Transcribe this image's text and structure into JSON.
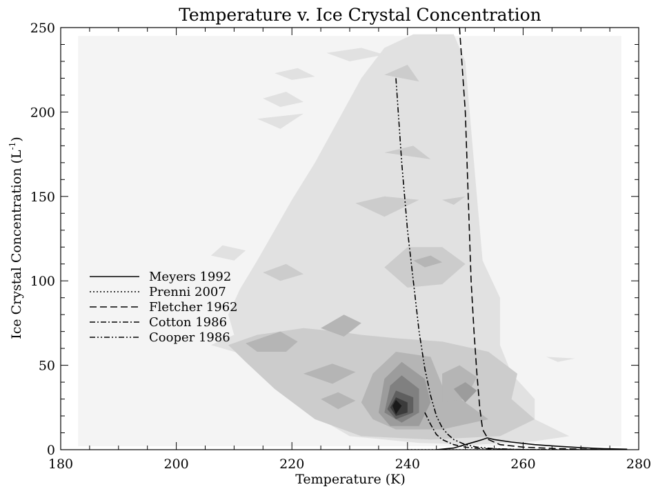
{
  "chart_data": {
    "type": "contour",
    "title": "Temperature v. Ice Crystal Concentration",
    "xlabel": "Temperature (K)",
    "ylabel": "Ice Crystal Concentration (L",
    "ylabel_sup": "-1",
    "ylabel_suffix": ")",
    "xlim": [
      180,
      280
    ],
    "ylim": [
      0,
      250
    ],
    "xticks": [
      180,
      200,
      220,
      240,
      260,
      280
    ],
    "yticks": [
      0,
      50,
      100,
      150,
      200,
      250
    ],
    "x_minor_step": 5,
    "y_minor_step": 10,
    "grid": false,
    "legend_position": "middle-left",
    "colors": {
      "background": "#ffffff",
      "axis": "#000000",
      "levels": [
        "#f4f4f4",
        "#e1e1e1",
        "#cccccc",
        "#b5b5b5",
        "#9c9c9c",
        "#808080",
        "#5f5f5f",
        "#3b3b3b",
        "#1a1a1a"
      ]
    },
    "density_background": {
      "x": [
        183,
        277
      ],
      "y": [
        2,
        245
      ]
    },
    "density_regions": [
      {
        "level": 1,
        "points": [
          [
            210,
            68
          ],
          [
            206,
            62
          ],
          [
            212,
            56
          ],
          [
            218,
            40
          ],
          [
            224,
            20
          ],
          [
            230,
            8
          ],
          [
            242,
            4
          ],
          [
            252,
            3
          ],
          [
            262,
            5
          ],
          [
            268,
            8
          ],
          [
            262,
            18
          ],
          [
            262,
            30
          ],
          [
            258,
            45
          ],
          [
            256,
            62
          ],
          [
            256,
            90
          ],
          [
            253,
            112
          ],
          [
            252,
            150
          ],
          [
            251,
            190
          ],
          [
            250,
            230
          ],
          [
            248,
            246
          ],
          [
            241,
            246
          ],
          [
            236,
            238
          ],
          [
            232,
            220
          ],
          [
            228,
            195
          ],
          [
            224,
            170
          ],
          [
            220,
            148
          ],
          [
            217,
            130
          ],
          [
            214,
            112
          ],
          [
            211,
            95
          ],
          [
            209,
            80
          ]
        ]
      },
      {
        "level": 1,
        "points": [
          [
            208,
            121
          ],
          [
            212,
            118
          ],
          [
            210,
            112
          ],
          [
            206,
            115
          ]
        ]
      },
      {
        "level": 1,
        "points": [
          [
            214,
            196
          ],
          [
            222,
            199
          ],
          [
            218,
            190
          ]
        ]
      },
      {
        "level": 1,
        "points": [
          [
            217,
            223
          ],
          [
            221,
            226
          ],
          [
            224,
            221
          ],
          [
            220,
            219
          ]
        ]
      },
      {
        "level": 1,
        "points": [
          [
            215,
            208
          ],
          [
            219,
            212
          ],
          [
            222,
            206
          ],
          [
            218,
            203
          ]
        ]
      },
      {
        "level": 1,
        "points": [
          [
            226,
            235
          ],
          [
            232,
            238
          ],
          [
            236,
            234
          ],
          [
            230,
            230
          ]
        ]
      },
      {
        "level": 1,
        "points": [
          [
            264,
            55
          ],
          [
            269,
            54
          ],
          [
            266,
            52
          ]
        ]
      },
      {
        "level": 2,
        "points": [
          [
            209,
            62
          ],
          [
            214,
            68
          ],
          [
            222,
            72
          ],
          [
            228,
            70
          ],
          [
            232,
            68
          ],
          [
            238,
            66
          ],
          [
            246,
            64
          ],
          [
            254,
            58
          ],
          [
            259,
            45
          ],
          [
            258,
            30
          ],
          [
            262,
            18
          ],
          [
            256,
            8
          ],
          [
            244,
            6
          ],
          [
            232,
            8
          ],
          [
            224,
            18
          ],
          [
            217,
            36
          ],
          [
            212,
            52
          ]
        ]
      },
      {
        "level": 2,
        "points": [
          [
            236,
            108
          ],
          [
            240,
            120
          ],
          [
            246,
            120
          ],
          [
            250,
            110
          ],
          [
            246,
            98
          ],
          [
            240,
            96
          ]
        ]
      },
      {
        "level": 2,
        "points": [
          [
            231,
            146
          ],
          [
            236,
            150
          ],
          [
            242,
            148
          ],
          [
            236,
            138
          ]
        ]
      },
      {
        "level": 2,
        "points": [
          [
            236,
            176
          ],
          [
            241,
            180
          ],
          [
            244,
            172
          ]
        ]
      },
      {
        "level": 2,
        "points": [
          [
            236,
            222
          ],
          [
            240,
            228
          ],
          [
            242,
            218
          ]
        ]
      },
      {
        "level": 2,
        "points": [
          [
            215,
            105
          ],
          [
            219,
            110
          ],
          [
            222,
            104
          ],
          [
            218,
            100
          ]
        ]
      },
      {
        "level": 2,
        "points": [
          [
            246,
            148
          ],
          [
            250,
            150
          ],
          [
            248,
            145
          ]
        ]
      },
      {
        "level": 3,
        "points": [
          [
            212,
            63
          ],
          [
            218,
            70
          ],
          [
            221,
            64
          ],
          [
            219,
            58
          ],
          [
            214,
            58
          ]
        ]
      },
      {
        "level": 3,
        "points": [
          [
            222,
            45
          ],
          [
            227,
            51
          ],
          [
            231,
            46
          ],
          [
            227,
            39
          ]
        ]
      },
      {
        "level": 3,
        "points": [
          [
            225,
            72
          ],
          [
            229,
            80
          ],
          [
            232,
            75
          ],
          [
            229,
            67
          ]
        ]
      },
      {
        "level": 3,
        "points": [
          [
            225,
            30
          ],
          [
            228,
            34
          ],
          [
            231,
            29
          ],
          [
            228,
            24
          ]
        ]
      },
      {
        "level": 3,
        "points": [
          [
            232,
            28
          ],
          [
            234,
            45
          ],
          [
            238,
            58
          ],
          [
            244,
            55
          ],
          [
            246,
            38
          ],
          [
            250,
            28
          ],
          [
            254,
            18
          ],
          [
            246,
            12
          ],
          [
            238,
            12
          ],
          [
            234,
            18
          ]
        ]
      },
      {
        "level": 3,
        "points": [
          [
            246,
            45
          ],
          [
            249,
            50
          ],
          [
            252,
            43
          ],
          [
            250,
            30
          ],
          [
            246,
            28
          ]
        ]
      },
      {
        "level": 3,
        "points": [
          [
            241,
            112
          ],
          [
            244,
            115
          ],
          [
            246,
            111
          ],
          [
            243,
            108
          ]
        ]
      },
      {
        "level": 4,
        "points": [
          [
            235,
            22
          ],
          [
            236,
            42
          ],
          [
            239,
            52
          ],
          [
            243,
            42
          ],
          [
            244,
            28
          ],
          [
            242,
            14
          ],
          [
            237,
            14
          ]
        ]
      },
      {
        "level": 4,
        "points": [
          [
            248,
            36
          ],
          [
            250,
            40
          ],
          [
            252,
            35
          ],
          [
            250,
            28
          ]
        ]
      },
      {
        "level": 5,
        "points": [
          [
            236,
            22
          ],
          [
            237,
            38
          ],
          [
            239,
            44
          ],
          [
            242,
            36
          ],
          [
            242,
            22
          ],
          [
            239,
            16
          ]
        ]
      },
      {
        "level": 6,
        "points": [
          [
            236.5,
            24
          ],
          [
            238,
            35
          ],
          [
            241,
            31
          ],
          [
            241,
            22
          ],
          [
            238,
            18
          ]
        ]
      },
      {
        "level": 7,
        "points": [
          [
            237,
            25
          ],
          [
            238,
            31
          ],
          [
            240,
            28
          ],
          [
            240,
            22
          ],
          [
            238,
            20
          ]
        ]
      },
      {
        "level": 8,
        "points": [
          [
            237.4,
            26
          ],
          [
            238,
            29.5
          ],
          [
            239,
            26
          ],
          [
            238,
            21
          ]
        ]
      }
    ],
    "series": [
      {
        "name": "Meyers 1992",
        "dash": "",
        "points": [
          [
            245,
            0
          ],
          [
            248,
            1
          ],
          [
            250,
            3
          ],
          [
            251,
            4
          ],
          [
            252,
            5
          ],
          [
            253,
            6
          ],
          [
            253.8,
            7
          ],
          [
            255,
            6
          ],
          [
            258,
            4.5
          ],
          [
            262,
            3
          ],
          [
            266,
            2
          ],
          [
            270,
            1.2
          ],
          [
            274,
            0.6
          ],
          [
            278,
            0.3
          ]
        ]
      },
      {
        "name": "Prenni 2007",
        "dash": "2,3",
        "points": [
          [
            240,
            0
          ],
          [
            248,
            0
          ],
          [
            256,
            0
          ],
          [
            264,
            0
          ],
          [
            272,
            0
          ],
          [
            278,
            0
          ]
        ]
      },
      {
        "name": "Fletcher 1962",
        "dash": "10,5",
        "points": [
          [
            249,
            250
          ],
          [
            250,
            200
          ],
          [
            250.5,
            150
          ],
          [
            250.8,
            120
          ],
          [
            251,
            100
          ],
          [
            251.5,
            70
          ],
          [
            252,
            45
          ],
          [
            252.5,
            25
          ],
          [
            253,
            12
          ],
          [
            254,
            6
          ],
          [
            256,
            3
          ],
          [
            260,
            1.5
          ],
          [
            266,
            0.6
          ],
          [
            272,
            0.2
          ],
          [
            278,
            0
          ]
        ]
      },
      {
        "name": "Cotton 1986",
        "dash": "8,3,2,3",
        "points": [
          [
            243,
            22
          ],
          [
            244,
            15
          ],
          [
            245,
            9
          ],
          [
            246,
            6
          ],
          [
            248,
            3
          ],
          [
            250,
            1.5
          ],
          [
            252,
            0.8
          ],
          [
            255,
            0.4
          ],
          [
            260,
            0.1
          ],
          [
            278,
            0
          ]
        ]
      },
      {
        "name": "Cooper 1986",
        "dash": "8,3,2,3,2,3",
        "points": [
          [
            238,
            220
          ],
          [
            239,
            170
          ],
          [
            240,
            130
          ],
          [
            241,
            100
          ],
          [
            242,
            70
          ],
          [
            243,
            48
          ],
          [
            244,
            32
          ],
          [
            245,
            20
          ],
          [
            246,
            13
          ],
          [
            247,
            9
          ],
          [
            248,
            6
          ],
          [
            250,
            3
          ],
          [
            252,
            1.5
          ],
          [
            255,
            0.6
          ],
          [
            260,
            0.1
          ],
          [
            264,
            0
          ]
        ]
      }
    ]
  }
}
